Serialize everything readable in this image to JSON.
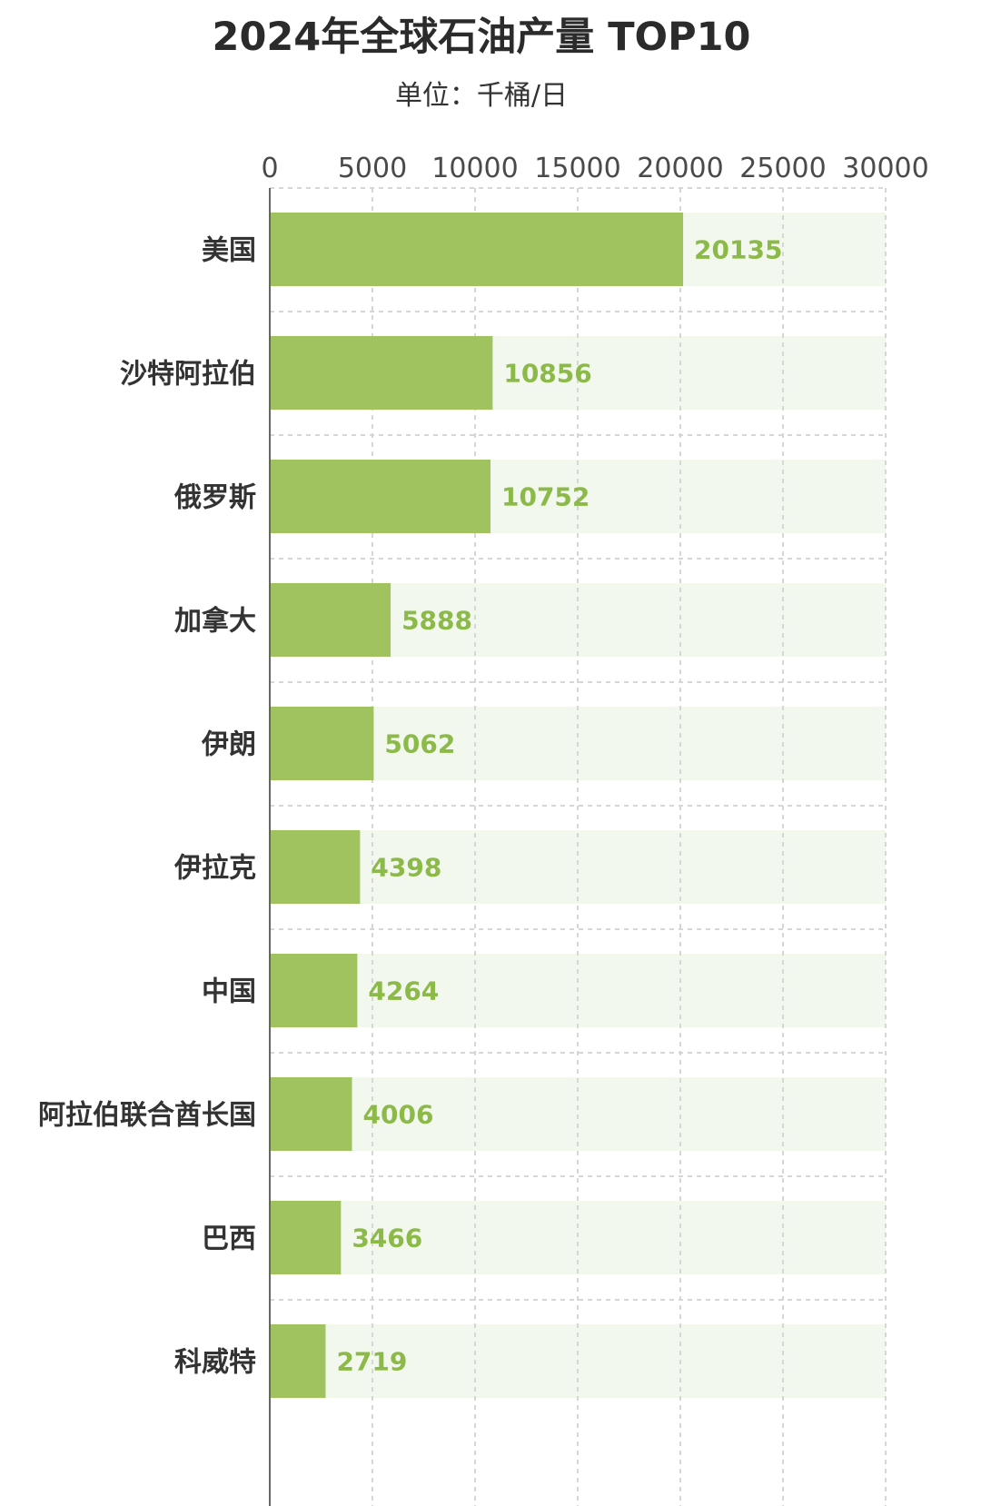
{
  "title": "2024年全球石油产量 TOP10",
  "subtitle": "单位：千桶/日",
  "colors": {
    "bar": "#a0c35f",
    "row_background": "#f3f8ee",
    "value_text": "#8cba48",
    "grid": "#d6d6d6",
    "axis": "#666666"
  },
  "chart_data": {
    "type": "bar",
    "orientation": "horizontal",
    "title": "2024年全球石油产量 TOP10",
    "subtitle": "单位：千桶/日",
    "categories": [
      "美国",
      "沙特阿拉伯",
      "俄罗斯",
      "加拿大",
      "伊朗",
      "伊拉克",
      "中国",
      "阿拉伯联合酋长国",
      "巴西",
      "科威特"
    ],
    "values": [
      20135,
      10856,
      10752,
      5888,
      5062,
      4398,
      4264,
      4006,
      3466,
      2719
    ],
    "value_labels": [
      "20135",
      "10856",
      "10752",
      "5888",
      "5062",
      "4398",
      "4264",
      "4006",
      "3466",
      "2719"
    ],
    "xlim": [
      0,
      30000
    ],
    "xticks": [
      0,
      5000,
      10000,
      15000,
      20000,
      25000,
      30000
    ],
    "xtick_labels": [
      "0",
      "5000",
      "10000",
      "15000",
      "20000",
      "25000",
      "30000"
    ],
    "x_axis_position": "top",
    "grid": true,
    "legend": "none",
    "data_labels": true
  }
}
